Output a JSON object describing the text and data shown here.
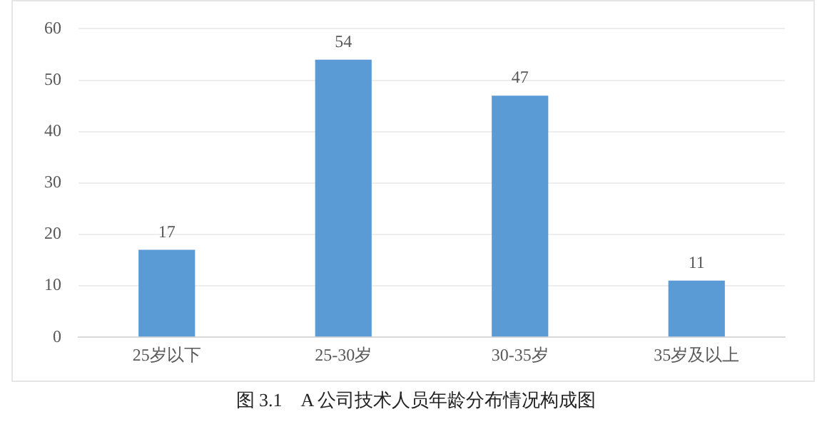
{
  "chart_data": {
    "type": "bar",
    "title": "图 3.1　A 公司技术人员年龄分布情况构成图",
    "categories": [
      "25岁以下",
      "25-30岁",
      "30-35岁",
      "35岁及以上"
    ],
    "values": [
      17,
      54,
      47,
      11
    ],
    "color": "#5b9bd5",
    "ylim": [
      0,
      60
    ],
    "yticks": [
      0,
      10,
      20,
      30,
      40,
      50,
      60
    ],
    "grid": "y",
    "data_labels": true,
    "legend": false
  }
}
